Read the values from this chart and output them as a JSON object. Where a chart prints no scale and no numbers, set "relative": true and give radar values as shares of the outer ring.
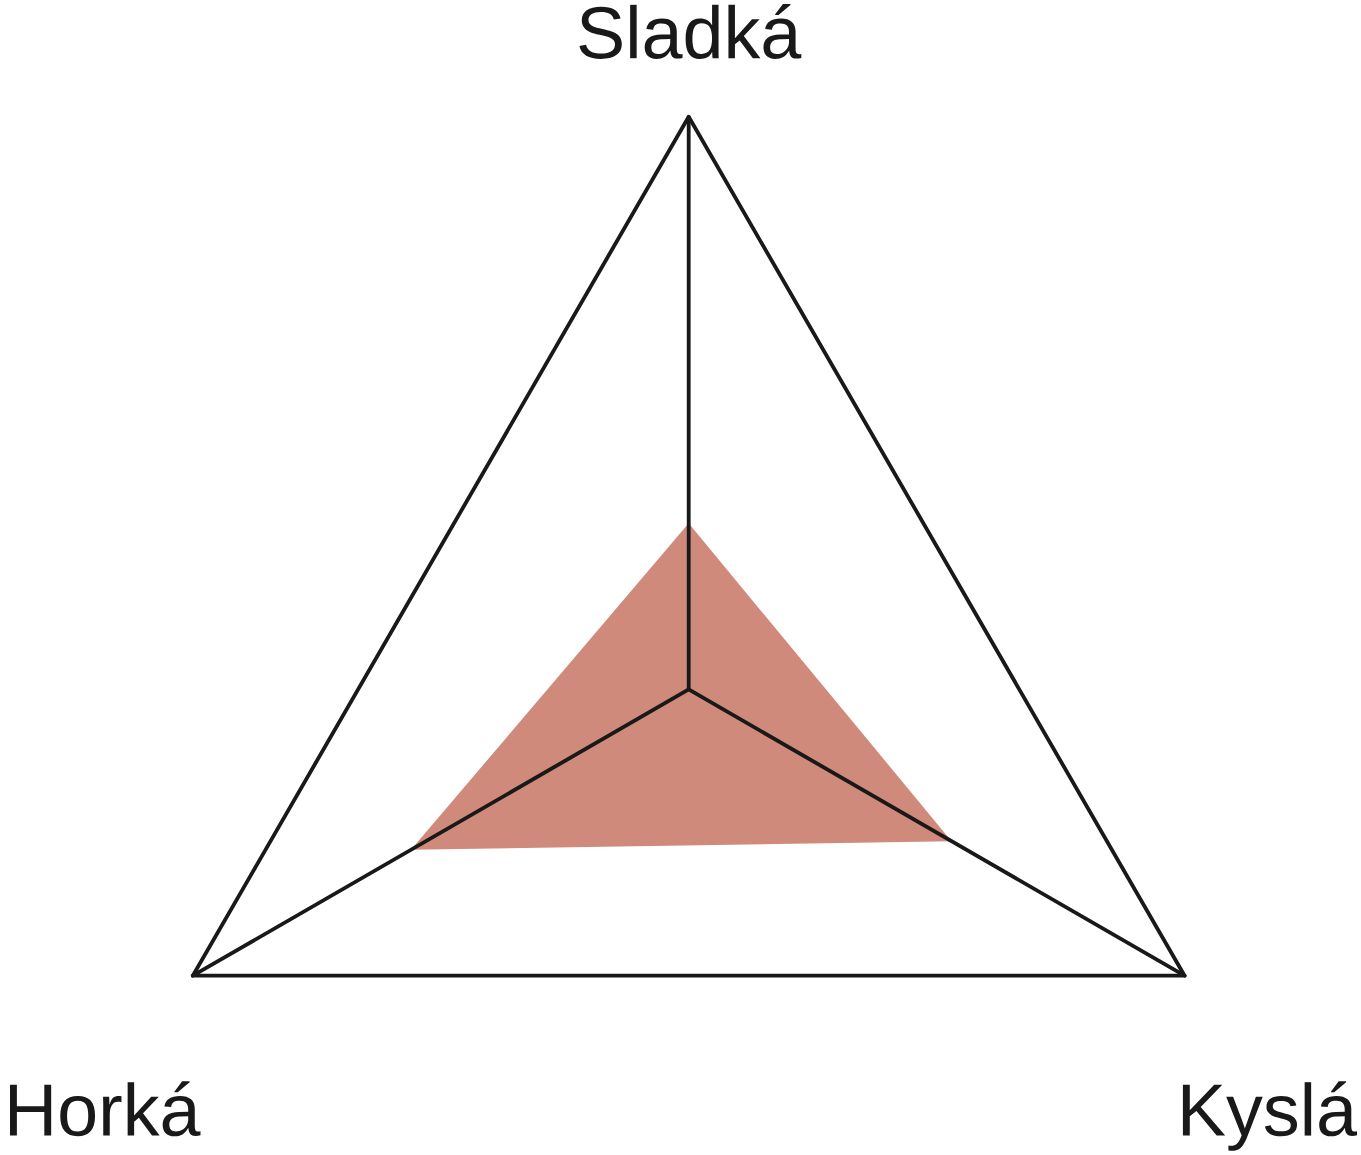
{
  "chart_data": {
    "type": "radar",
    "relative": true,
    "categories": [
      "Sladká",
      "Kyslá",
      "Horká"
    ],
    "series": [
      {
        "color": "#d08a7c",
        "values": [
          0.29,
          0.53,
          0.56
        ]
      }
    ]
  }
}
